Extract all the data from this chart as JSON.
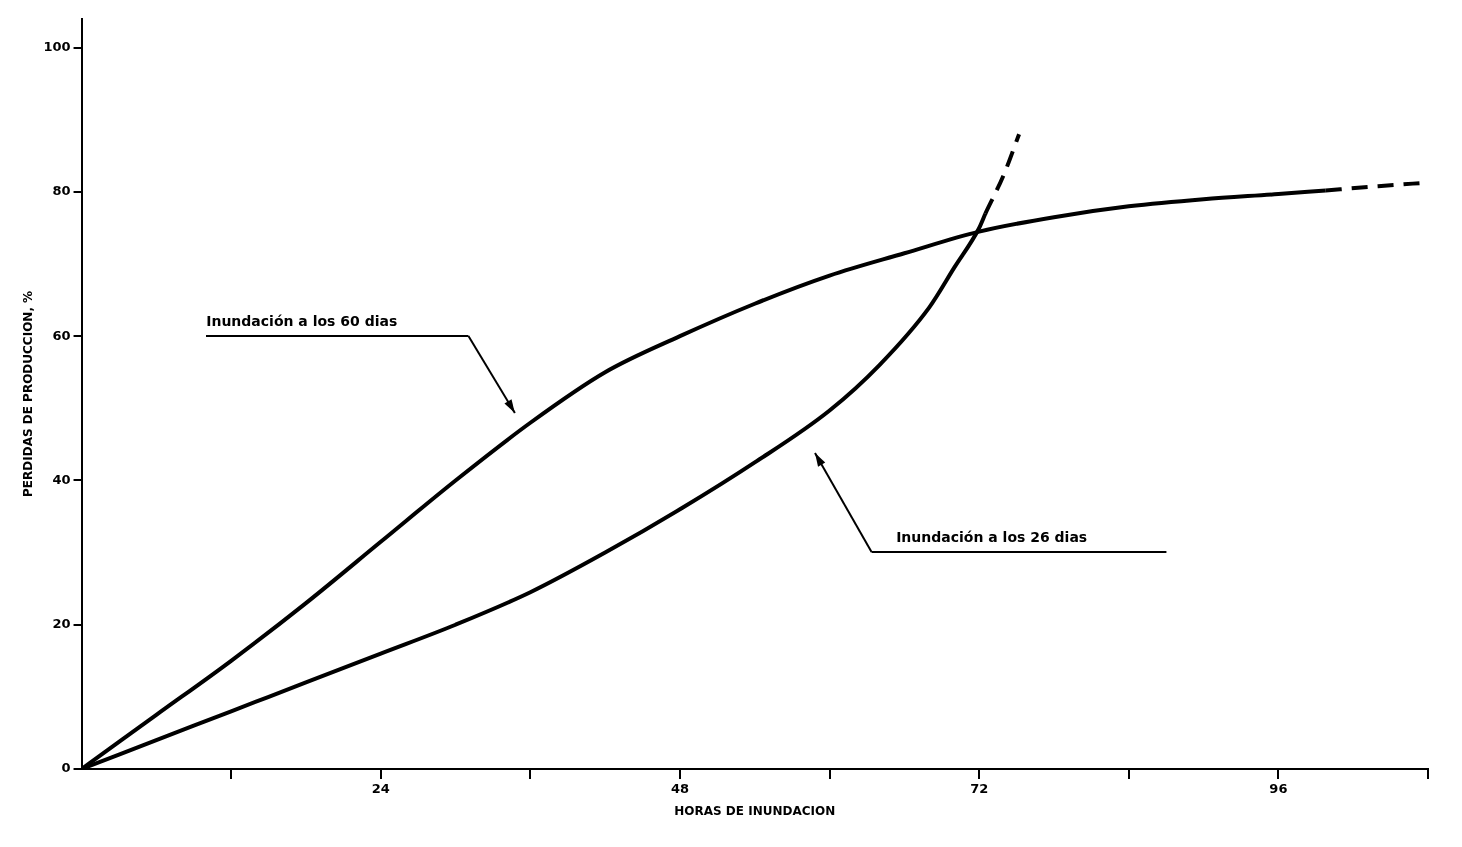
{
  "chart_data": {
    "type": "line",
    "xlabel": "HORAS DE INUNDACION",
    "ylabel": "PERDIDAS DE PRODUCCION, %",
    "xlim": [
      0,
      108
    ],
    "ylim": [
      0,
      104
    ],
    "xticks": [
      {
        "value": 12,
        "label": null
      },
      24,
      {
        "value": 36,
        "label": null
      },
      48,
      {
        "value": 60,
        "label": null
      },
      72,
      {
        "value": 84,
        "label": null
      },
      96,
      {
        "value": 108,
        "label": null
      }
    ],
    "yticks": [
      0,
      20,
      40,
      60,
      80,
      100
    ],
    "grid": false,
    "legend": false,
    "marker": "none",
    "series": [
      {
        "color": "#000000",
        "line_style": "solid",
        "x": [
          0,
          6,
          12,
          18,
          24,
          30,
          36,
          42,
          48,
          54,
          60,
          66,
          72,
          78,
          84,
          90,
          96,
          99.8
        ],
        "values": [
          0,
          7.5,
          15,
          23,
          31.5,
          40,
          48,
          55,
          60,
          64.5,
          68.4,
          71.5,
          74.5,
          76.5,
          78,
          79,
          79.7,
          80.2
        ]
      },
      {
        "color": "#000000",
        "line_style": "dashed",
        "x": [
          99.8,
          104,
          108
        ],
        "values": [
          80.2,
          80.8,
          81.3
        ]
      },
      {
        "color": "#000000",
        "line_style": "solid",
        "x": [
          0,
          6,
          12,
          18,
          24,
          30,
          36,
          42,
          48,
          54,
          60,
          64,
          68,
          70,
          72,
          72.5
        ],
        "values": [
          0,
          4,
          8,
          12,
          16,
          20,
          24.5,
          30,
          36,
          42.5,
          49.7,
          56,
          64,
          69.5,
          75,
          77
        ]
      },
      {
        "color": "#000000",
        "line_style": "dashed",
        "x": [
          72.5,
          74,
          75.2
        ],
        "values": [
          77,
          82.5,
          88
        ]
      }
    ],
    "annotations": [
      "Inundación a los 60 dias",
      "Inundación a los 26 dias"
    ]
  }
}
